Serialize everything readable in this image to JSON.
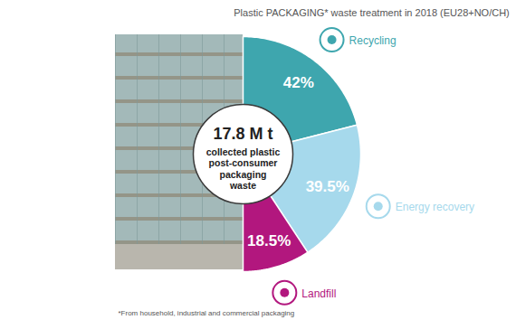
{
  "chart_data": {
    "type": "pie",
    "title": "Plastic PACKAGING* waste treatment in 2018 (EU28+NO/CH)",
    "categories": [
      "Recycling",
      "Energy recovery",
      "Landfill"
    ],
    "values": [
      42,
      39.5,
      18.5
    ],
    "value_labels": [
      "42%",
      "39.5%",
      "18.5%"
    ],
    "colors": [
      "#3ea6ae",
      "#a6d9ec",
      "#b2177e"
    ],
    "data_labels": true,
    "center_text": [
      "17.8 M t",
      "collected plastic",
      "post-consumer",
      "packaging",
      "waste"
    ],
    "footnote": "*From household, industrial and commercial packaging"
  }
}
